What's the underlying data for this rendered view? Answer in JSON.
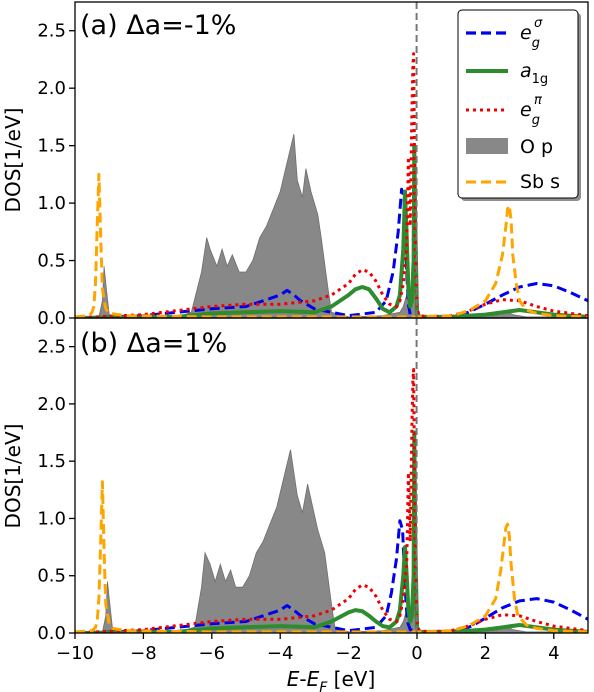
{
  "figure": {
    "xlabel": "E-E_F [eV]",
    "xticks": [
      "−10",
      "−8",
      "−6",
      "−4",
      "−2",
      "0",
      "2",
      "4"
    ],
    "yticks": [
      "0.0",
      "0.5",
      "1.0",
      "1.5",
      "2.0",
      "2.5"
    ]
  },
  "legend": {
    "entries": [
      {
        "label": "e_g^σ",
        "color": "#0000ee",
        "style": "dashed"
      },
      {
        "label": "a_1g",
        "color": "#2e8b2e",
        "style": "solid"
      },
      {
        "label": "e_g^π",
        "color": "#ee0000",
        "style": "dotted"
      },
      {
        "label": "O p",
        "color": "#888888",
        "style": "fill"
      },
      {
        "label": "Sb s",
        "color": "#ffa500",
        "style": "dashed"
      }
    ]
  },
  "chart_data": [
    {
      "type": "line",
      "panel_label": "(a) Δa=-1%",
      "xlabel": "",
      "ylabel": "DOS[1/eV]",
      "xlim": [
        -10,
        5
      ],
      "ylim": [
        0,
        2.75
      ],
      "vline_x": 0,
      "series": [
        {
          "name": "O p",
          "kind": "area",
          "color": "#888888",
          "x": [
            -10,
            -9.3,
            -9.2,
            -9.15,
            -9.1,
            -9.0,
            -8.6,
            -7,
            -6.6,
            -6.3,
            -6.15,
            -6.05,
            -5.85,
            -5.7,
            -5.55,
            -5.4,
            -5.2,
            -5.0,
            -4.8,
            -4.6,
            -4.4,
            -4.2,
            -4.0,
            -3.8,
            -3.6,
            -3.5,
            -3.35,
            -3.25,
            -3.1,
            -2.9,
            -2.8,
            -2.6,
            -2.5,
            -2.0,
            -1.0,
            -0.5,
            -0.4,
            -0.3,
            -0.2,
            -0.1,
            0,
            0.1,
            0.3,
            2.3,
            2.6,
            2.8,
            3.2,
            5
          ],
          "y": [
            0.01,
            0.01,
            0.15,
            0.45,
            0.3,
            0.03,
            0.01,
            0.01,
            0.05,
            0.4,
            0.7,
            0.6,
            0.45,
            0.6,
            0.45,
            0.55,
            0.4,
            0.4,
            0.5,
            0.7,
            0.8,
            0.95,
            1.1,
            1.35,
            1.6,
            1.2,
            1.05,
            1.3,
            1.1,
            0.9,
            0.7,
            0.25,
            0.05,
            0.01,
            0.02,
            0.05,
            0.1,
            0.2,
            0.1,
            0.3,
            0.02,
            0.01,
            0.01,
            0.02,
            0.06,
            0.03,
            0.01,
            0.01
          ]
        },
        {
          "name": "e_g^σ",
          "kind": "line",
          "color": "#0000ee",
          "dash": "10 5",
          "width": 3,
          "x": [
            -10,
            -8,
            -6,
            -5,
            -4.5,
            -4,
            -3.8,
            -3.6,
            -3.4,
            -3,
            -2,
            -1.2,
            -0.9,
            -0.7,
            -0.55,
            -0.45,
            -0.38,
            -0.3,
            -0.25,
            -0.2,
            0,
            0.2,
            1,
            1.5,
            2,
            2.5,
            3,
            3.5,
            4,
            4.5,
            5
          ],
          "y": [
            0,
            0.02,
            0.08,
            0.1,
            0.15,
            0.2,
            0.24,
            0.2,
            0.15,
            0.08,
            0.02,
            0.05,
            0.15,
            0.4,
            0.75,
            1.12,
            1.05,
            0.4,
            0.12,
            0.03,
            0.01,
            0,
            0.01,
            0.05,
            0.12,
            0.2,
            0.27,
            0.3,
            0.28,
            0.22,
            0.15
          ]
        },
        {
          "name": "a_1g",
          "kind": "line",
          "color": "#2e8b2e",
          "dash": "",
          "width": 4,
          "x": [
            -10,
            -7,
            -6,
            -5,
            -4,
            -3,
            -2.5,
            -2,
            -1.8,
            -1.6,
            -1.4,
            -1.2,
            -1,
            -0.8,
            -0.6,
            -0.5,
            -0.4,
            -0.35,
            -0.3,
            -0.25,
            -0.2,
            -0.15,
            -0.1,
            -0.08,
            -0.05,
            0,
            0.05,
            0.1,
            0.3,
            1,
            2,
            2.5,
            3,
            3.5,
            4,
            5
          ],
          "y": [
            0,
            0.01,
            0.04,
            0.05,
            0.06,
            0.05,
            0.1,
            0.2,
            0.25,
            0.27,
            0.25,
            0.17,
            0.08,
            0.05,
            0.1,
            0.2,
            0.6,
            1.1,
            0.7,
            0.25,
            0.1,
            0.15,
            0.5,
            1.5,
            0.8,
            0.05,
            0.02,
            0.01,
            0.01,
            0.01,
            0.03,
            0.05,
            0.07,
            0.05,
            0.03,
            0.01
          ]
        },
        {
          "name": "e_g^π",
          "kind": "line",
          "color": "#ee0000",
          "dash": "3 4",
          "width": 3,
          "x": [
            -10,
            -8,
            -6,
            -5,
            -4,
            -3,
            -2.5,
            -2,
            -1.8,
            -1.6,
            -1.4,
            -1.2,
            -1,
            -0.8,
            -0.6,
            -0.5,
            -0.4,
            -0.3,
            -0.25,
            -0.2,
            -0.15,
            -0.12,
            -0.1,
            -0.08,
            -0.05,
            0,
            0.05,
            0.1,
            0.3,
            1,
            1.5,
            2,
            2.5,
            3,
            3.5,
            4,
            5
          ],
          "y": [
            0,
            0.03,
            0.1,
            0.12,
            0.12,
            0.15,
            0.2,
            0.3,
            0.38,
            0.42,
            0.4,
            0.32,
            0.2,
            0.12,
            0.1,
            0.15,
            0.3,
            0.6,
            1.4,
            0.8,
            1.8,
            2.2,
            2.3,
            1.6,
            0.6,
            0.1,
            0.03,
            0.02,
            0.01,
            0.02,
            0.06,
            0.12,
            0.16,
            0.15,
            0.1,
            0.06,
            0.02
          ]
        },
        {
          "name": "Sb s",
          "kind": "line",
          "color": "#ffa500",
          "dash": "10 5",
          "width": 3,
          "x": [
            -10,
            -9.6,
            -9.5,
            -9.45,
            -9.4,
            -9.35,
            -9.3,
            -9.25,
            -9.2,
            -9.1,
            -9.0,
            -8.5,
            -6,
            -3,
            -1,
            0,
            1,
            1.5,
            2,
            2.3,
            2.5,
            2.6,
            2.65,
            2.7,
            2.75,
            2.8,
            2.9,
            3.0,
            3.2,
            3.5,
            4,
            5
          ],
          "y": [
            0.01,
            0.02,
            0.05,
            0.1,
            0.3,
            0.8,
            1.25,
            0.7,
            0.25,
            0.08,
            0.04,
            0.02,
            0.01,
            0.01,
            0.01,
            0.01,
            0.02,
            0.06,
            0.15,
            0.3,
            0.55,
            0.8,
            0.95,
            0.98,
            0.85,
            0.55,
            0.3,
            0.15,
            0.07,
            0.04,
            0.02,
            0.01
          ]
        }
      ]
    },
    {
      "type": "line",
      "panel_label": "(b) Δa=1%",
      "xlabel": "E-E_F [eV]",
      "ylabel": "DOS[1/eV]",
      "xlim": [
        -10,
        5
      ],
      "ylim": [
        0,
        2.75
      ],
      "vline_x": 0,
      "series": [
        {
          "name": "O p",
          "kind": "area",
          "color": "#888888",
          "x": [
            -10,
            -9.2,
            -9.1,
            -9.05,
            -9.0,
            -8.9,
            -8.5,
            -7,
            -6.5,
            -6.3,
            -6.2,
            -6.05,
            -5.9,
            -5.75,
            -5.6,
            -5.45,
            -5.3,
            -5.1,
            -4.9,
            -4.7,
            -4.5,
            -4.3,
            -4.1,
            -3.9,
            -3.7,
            -3.5,
            -3.35,
            -3.2,
            -3.05,
            -2.9,
            -2.7,
            -2.5,
            -2.4,
            -2.0,
            -1.0,
            -0.5,
            -0.4,
            -0.3,
            -0.2,
            -0.1,
            0,
            0.1,
            0.3,
            2.3,
            2.6,
            2.8,
            3.2,
            5
          ],
          "y": [
            0.01,
            0.01,
            0.15,
            0.45,
            0.3,
            0.03,
            0.01,
            0.01,
            0.05,
            0.4,
            0.7,
            0.6,
            0.45,
            0.6,
            0.45,
            0.55,
            0.4,
            0.4,
            0.5,
            0.7,
            0.8,
            0.95,
            1.1,
            1.35,
            1.6,
            1.2,
            1.05,
            1.3,
            1.1,
            0.9,
            0.7,
            0.25,
            0.05,
            0.01,
            0.02,
            0.05,
            0.1,
            0.2,
            0.1,
            0.3,
            0.02,
            0.01,
            0.01,
            0.02,
            0.06,
            0.03,
            0.01,
            0.01
          ]
        },
        {
          "name": "e_g^σ",
          "kind": "line",
          "color": "#0000ee",
          "dash": "10 5",
          "width": 3,
          "x": [
            -10,
            -8,
            -6,
            -5,
            -4.5,
            -4,
            -3.8,
            -3.6,
            -3.4,
            -3,
            -2,
            -1.2,
            -0.9,
            -0.75,
            -0.6,
            -0.5,
            -0.42,
            -0.35,
            -0.28,
            -0.2,
            0,
            0.5,
            1.2,
            1.6,
            2,
            2.5,
            3,
            3.5,
            4,
            4.5,
            5
          ],
          "y": [
            0,
            0.02,
            0.08,
            0.1,
            0.15,
            0.2,
            0.24,
            0.2,
            0.15,
            0.08,
            0.02,
            0.05,
            0.15,
            0.35,
            0.65,
            0.98,
            0.9,
            0.4,
            0.1,
            0.03,
            0.01,
            0,
            0.02,
            0.06,
            0.13,
            0.22,
            0.28,
            0.3,
            0.27,
            0.2,
            0.12
          ]
        },
        {
          "name": "a_1g",
          "kind": "line",
          "color": "#2e8b2e",
          "dash": "",
          "width": 4,
          "x": [
            -10,
            -7,
            -6,
            -5,
            -4,
            -3,
            -2.5,
            -2,
            -1.8,
            -1.6,
            -1.4,
            -1.2,
            -1,
            -0.8,
            -0.6,
            -0.5,
            -0.4,
            -0.35,
            -0.3,
            -0.25,
            -0.2,
            -0.15,
            -0.1,
            -0.08,
            -0.05,
            0,
            0.05,
            0.1,
            0.3,
            1,
            2,
            2.5,
            3,
            3.5,
            4,
            5
          ],
          "y": [
            0,
            0.01,
            0.04,
            0.05,
            0.06,
            0.05,
            0.1,
            0.18,
            0.2,
            0.19,
            0.15,
            0.1,
            0.06,
            0.05,
            0.1,
            0.2,
            0.5,
            0.75,
            0.5,
            0.2,
            0.1,
            0.15,
            0.5,
            1.75,
            0.8,
            0.05,
            0.02,
            0.01,
            0.01,
            0.01,
            0.03,
            0.05,
            0.07,
            0.05,
            0.03,
            0.01
          ]
        },
        {
          "name": "e_g^π",
          "kind": "line",
          "color": "#ee0000",
          "dash": "3 4",
          "width": 3,
          "x": [
            -10,
            -8,
            -6,
            -5,
            -4,
            -3,
            -2.5,
            -2,
            -1.8,
            -1.6,
            -1.4,
            -1.2,
            -1,
            -0.8,
            -0.6,
            -0.5,
            -0.4,
            -0.3,
            -0.25,
            -0.2,
            -0.15,
            -0.12,
            -0.1,
            -0.08,
            -0.05,
            0,
            0.05,
            0.1,
            0.3,
            1,
            1.5,
            2,
            2.5,
            3,
            3.5,
            4,
            5
          ],
          "y": [
            0,
            0.03,
            0.1,
            0.12,
            0.12,
            0.15,
            0.2,
            0.3,
            0.38,
            0.42,
            0.4,
            0.32,
            0.2,
            0.12,
            0.1,
            0.15,
            0.3,
            0.6,
            1.4,
            0.8,
            1.8,
            2.2,
            2.3,
            1.6,
            0.6,
            0.1,
            0.03,
            0.02,
            0.01,
            0.02,
            0.06,
            0.12,
            0.16,
            0.15,
            0.1,
            0.06,
            0.02
          ]
        },
        {
          "name": "Sb s",
          "kind": "line",
          "color": "#ffa500",
          "dash": "10 5",
          "width": 3,
          "x": [
            -10,
            -9.5,
            -9.4,
            -9.35,
            -9.3,
            -9.25,
            -9.2,
            -9.15,
            -9.1,
            -9.0,
            -8.9,
            -8.5,
            -6,
            -3,
            -1,
            0,
            1,
            1.5,
            2,
            2.3,
            2.45,
            2.55,
            2.6,
            2.65,
            2.7,
            2.75,
            2.85,
            2.95,
            3.2,
            3.5,
            4,
            5
          ],
          "y": [
            0.01,
            0.02,
            0.05,
            0.1,
            0.3,
            0.8,
            1.32,
            0.7,
            0.25,
            0.08,
            0.04,
            0.02,
            0.01,
            0.01,
            0.01,
            0.01,
            0.02,
            0.06,
            0.15,
            0.3,
            0.55,
            0.8,
            0.92,
            0.95,
            0.85,
            0.6,
            0.3,
            0.15,
            0.07,
            0.04,
            0.02,
            0.01
          ]
        }
      ]
    }
  ]
}
